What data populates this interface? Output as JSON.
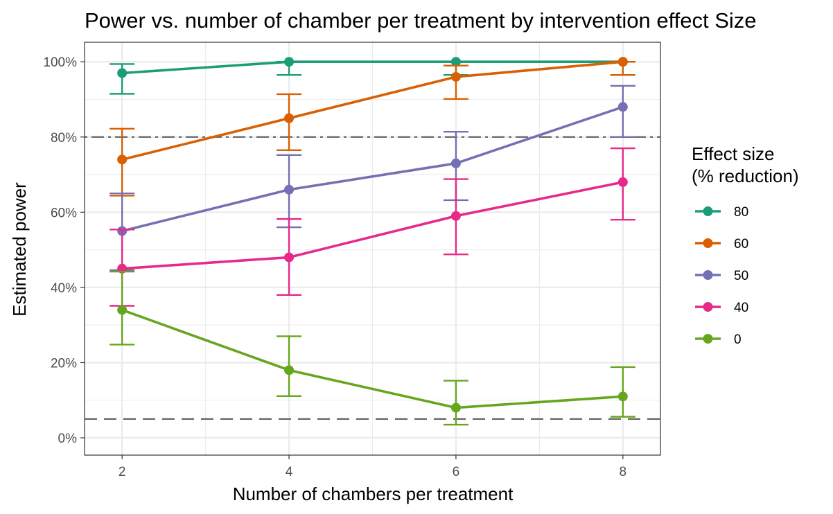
{
  "chart_data": {
    "type": "line",
    "title": "Power vs. number of chamber per treatment by intervention effect Size",
    "xlabel": "Number of chambers per treatment",
    "ylabel": "Estimated power",
    "x": [
      2,
      4,
      6,
      8
    ],
    "x_ticks": [
      "2",
      "4",
      "6",
      "8"
    ],
    "xlim": [
      1.55,
      8.45
    ],
    "ylim": [
      -4.6,
      105.2
    ],
    "y_ticks": [
      {
        "value": 0,
        "label": "0%"
      },
      {
        "value": 20,
        "label": "20%"
      },
      {
        "value": 40,
        "label": "40%"
      },
      {
        "value": 60,
        "label": "60%"
      },
      {
        "value": 80,
        "label": "80%"
      },
      {
        "value": 100,
        "label": "100%"
      }
    ],
    "reference_lines": [
      {
        "y": 80,
        "style": "dashdot"
      },
      {
        "y": 5,
        "style": "dashed"
      }
    ],
    "grid": true,
    "legend": {
      "title_line1": "Effect size",
      "title_line2": "(% reduction)",
      "placement": "right"
    },
    "series": [
      {
        "name": "80",
        "color": "#1b9e77",
        "values": [
          97,
          100,
          100,
          100
        ],
        "lower": [
          91.5,
          96.5,
          96.5,
          96.5
        ],
        "upper": [
          99.4,
          100,
          100,
          100
        ]
      },
      {
        "name": "60",
        "color": "#d95f02",
        "values": [
          74,
          85,
          96,
          100
        ],
        "lower": [
          64.4,
          76.5,
          90.1,
          96.5
        ],
        "upper": [
          82.2,
          91.4,
          99,
          100
        ]
      },
      {
        "name": "50",
        "color": "#7570b3",
        "values": [
          55,
          66,
          73,
          88
        ],
        "lower": [
          44.6,
          56,
          63.2,
          80
        ],
        "upper": [
          65,
          75.2,
          81.4,
          93.6
        ]
      },
      {
        "name": "40",
        "color": "#e7298a",
        "values": [
          45,
          48,
          59,
          68
        ],
        "lower": [
          35.1,
          38,
          48.8,
          58
        ],
        "upper": [
          55.4,
          58.2,
          68.8,
          77
        ]
      },
      {
        "name": "0",
        "color": "#66a61e",
        "values": [
          34,
          18,
          8,
          11
        ],
        "lower": [
          24.8,
          11.1,
          3.5,
          5.6
        ],
        "upper": [
          44.2,
          27,
          15.2,
          18.8
        ]
      }
    ]
  }
}
